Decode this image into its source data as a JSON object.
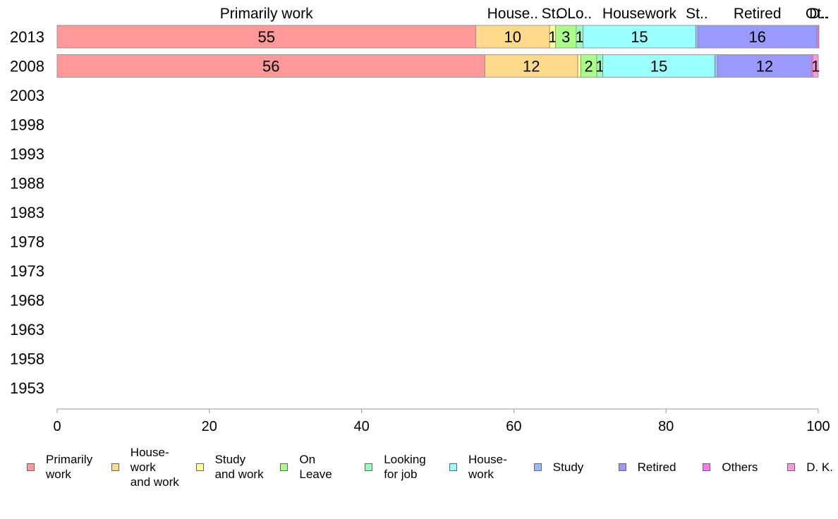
{
  "chart_data": {
    "type": "bar",
    "orientation": "horizontal",
    "stacked": true,
    "categories": [
      "2013",
      "2008",
      "2003",
      "1998",
      "1993",
      "1988",
      "1983",
      "1978",
      "1973",
      "1968",
      "1963",
      "1958",
      "1953"
    ],
    "series": [
      {
        "name": "Primarily work",
        "legend_label": "Primarily\nwork",
        "top_label": "Primarily work",
        "color": "#ff9999",
        "values": [
          55,
          56.2,
          null,
          null,
          null,
          null,
          null,
          null,
          null,
          null,
          null,
          null,
          null
        ],
        "labels": [
          "55",
          "56",
          "",
          "",
          "",
          "",
          "",
          "",
          "",
          "",
          "",
          "",
          ""
        ]
      },
      {
        "name": "Housework and work",
        "legend_label": "House-\nwork\nand work",
        "top_label": "House..",
        "color": "#ffd98c",
        "values": [
          9.7,
          12.2,
          null,
          null,
          null,
          null,
          null,
          null,
          null,
          null,
          null,
          null,
          null
        ],
        "labels": [
          "10",
          "12",
          "",
          "",
          "",
          "",
          "",
          "",
          "",
          "",
          "",
          "",
          ""
        ]
      },
      {
        "name": "Study and work",
        "legend_label": "Study\nand work",
        "top_label": "St..",
        "color": "#ffff99",
        "values": [
          0.8,
          0.4,
          null,
          null,
          null,
          null,
          null,
          null,
          null,
          null,
          null,
          null,
          null
        ],
        "labels": [
          "1",
          "",
          "",
          "",
          "",
          "",
          "",
          "",
          "",
          "",
          "",
          "",
          ""
        ]
      },
      {
        "name": "On Leave",
        "legend_label": "On\nLeave",
        "top_label": "O..",
        "color": "#aaff88",
        "values": [
          2.7,
          2.1,
          null,
          null,
          null,
          null,
          null,
          null,
          null,
          null,
          null,
          null,
          null
        ],
        "labels": [
          "3",
          "2",
          "",
          "",
          "",
          "",
          "",
          "",
          "",
          "",
          "",
          "",
          ""
        ]
      },
      {
        "name": "Looking for job",
        "legend_label": "Looking\nfor job",
        "top_label": "Lo..",
        "color": "#99ffbb",
        "values": [
          0.9,
          0.8,
          null,
          null,
          null,
          null,
          null,
          null,
          null,
          null,
          null,
          null,
          null
        ],
        "labels": [
          "1",
          "1",
          "",
          "",
          "",
          "",
          "",
          "",
          "",
          "",
          "",
          "",
          ""
        ]
      },
      {
        "name": "Housework",
        "legend_label": "House-\nwork",
        "top_label": "Housework",
        "color": "#99ffff",
        "values": [
          14.8,
          14.7,
          null,
          null,
          null,
          null,
          null,
          null,
          null,
          null,
          null,
          null,
          null
        ],
        "labels": [
          "15",
          "15",
          "",
          "",
          "",
          "",
          "",
          "",
          "",
          "",
          "",
          "",
          ""
        ]
      },
      {
        "name": "Study",
        "legend_label": "Study",
        "top_label": "St..",
        "color": "#99bbff",
        "values": [
          0.3,
          0.4,
          null,
          null,
          null,
          null,
          null,
          null,
          null,
          null,
          null,
          null,
          null
        ],
        "labels": [
          "",
          "",
          "",
          "",
          "",
          "",
          "",
          "",
          "",
          "",
          "",
          "",
          ""
        ]
      },
      {
        "name": "Retired",
        "legend_label": "Retired",
        "top_label": "Retired",
        "color": "#9999ff",
        "values": [
          15.6,
          12.3,
          null,
          null,
          null,
          null,
          null,
          null,
          null,
          null,
          null,
          null,
          null
        ],
        "labels": [
          "16",
          "12",
          "",
          "",
          "",
          "",
          "",
          "",
          "",
          "",
          "",
          "",
          ""
        ]
      },
      {
        "name": "Others",
        "legend_label": "Others",
        "top_label": "Ot..",
        "color": "#ff77ff",
        "values": [
          0.2,
          0.2,
          null,
          null,
          null,
          null,
          null,
          null,
          null,
          null,
          null,
          null,
          null
        ],
        "labels": [
          "",
          "",
          "",
          "",
          "",
          "",
          "",
          "",
          "",
          "",
          "",
          "",
          ""
        ]
      },
      {
        "name": "D. K.",
        "legend_label": "D. K.",
        "top_label": "D..",
        "color": "#ff99dd",
        "values": [
          0.1,
          0.7,
          null,
          null,
          null,
          null,
          null,
          null,
          null,
          null,
          null,
          null,
          null
        ],
        "labels": [
          "",
          "1",
          "",
          "",
          "",
          "",
          "",
          "",
          "",
          "",
          "",
          "",
          ""
        ]
      }
    ],
    "xlim": [
      0,
      100
    ],
    "xticks": [
      "0",
      "20",
      "40",
      "60",
      "80",
      "100"
    ],
    "title": "",
    "xlabel": "",
    "ylabel": "",
    "grid": false,
    "legend_position": "bottom"
  }
}
